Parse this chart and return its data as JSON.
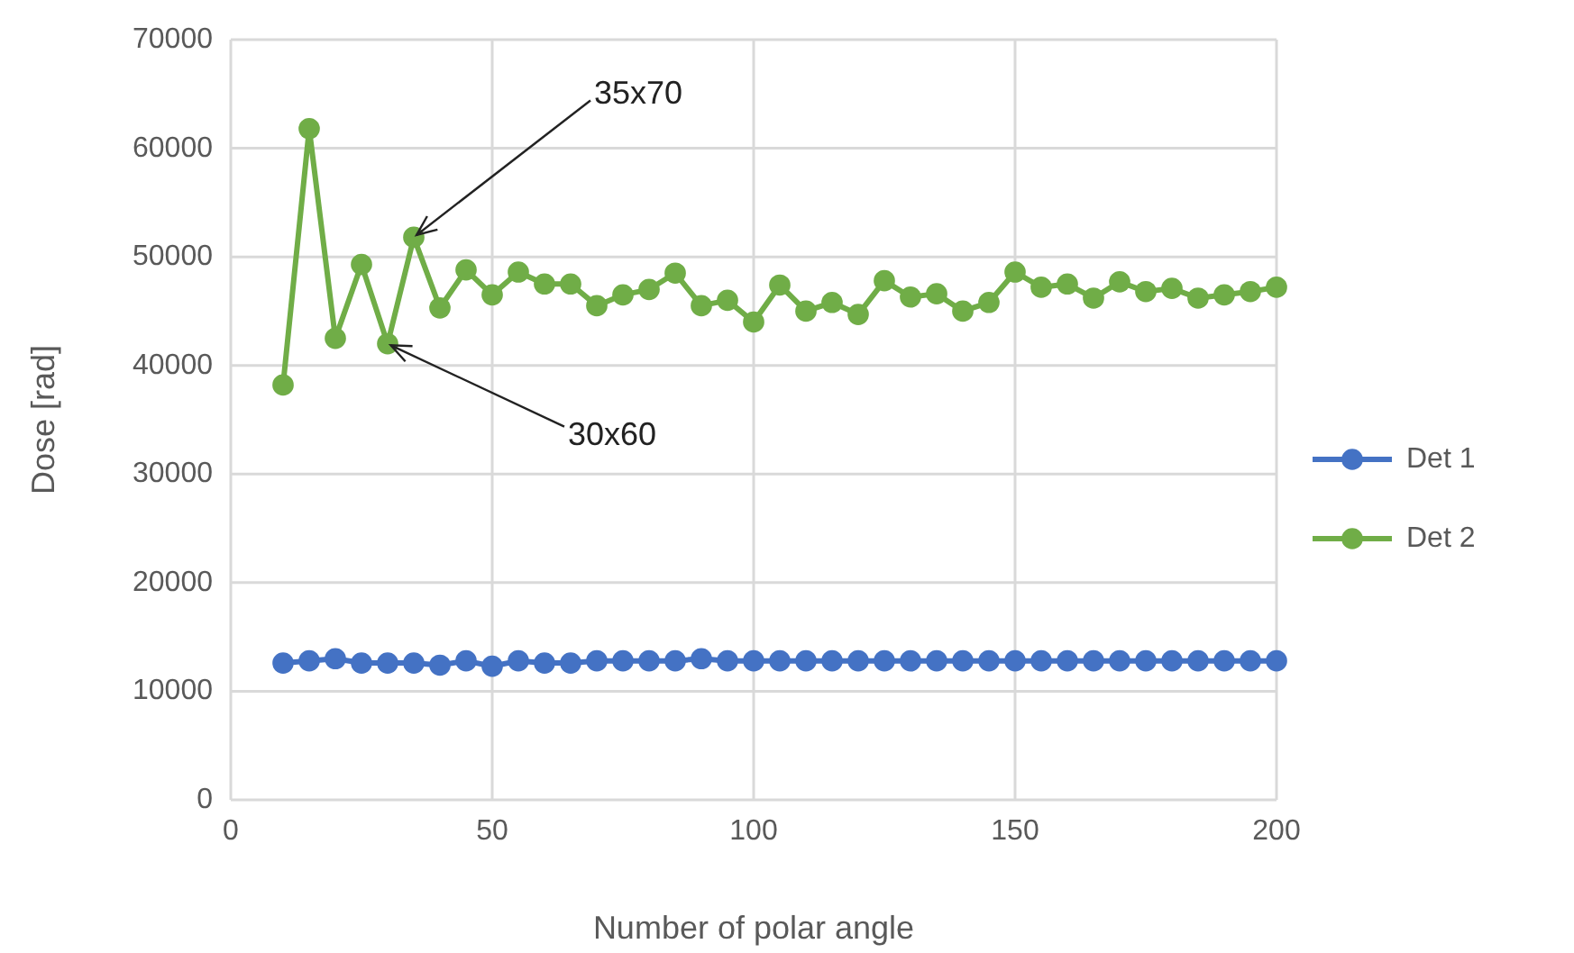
{
  "chart_data": {
    "type": "line",
    "xlabel": "Number of polar angle",
    "ylabel": "Dose [rad]",
    "x": [
      10,
      15,
      20,
      25,
      30,
      35,
      40,
      45,
      50,
      55,
      60,
      65,
      70,
      75,
      80,
      85,
      90,
      95,
      100,
      105,
      110,
      115,
      120,
      125,
      130,
      135,
      140,
      145,
      150,
      155,
      160,
      165,
      170,
      175,
      180,
      185,
      190,
      195,
      200
    ],
    "series": [
      {
        "name": "Det 1",
        "color": "#4472c4",
        "values": [
          12600,
          12800,
          13000,
          12600,
          12600,
          12600,
          12400,
          12800,
          12300,
          12800,
          12600,
          12600,
          12800,
          12800,
          12800,
          12800,
          13000,
          12800,
          12800,
          12800,
          12800,
          12800,
          12800,
          12800,
          12800,
          12800,
          12800,
          12800,
          12800,
          12800,
          12800,
          12800,
          12800,
          12800,
          12800,
          12800,
          12800,
          12800,
          12800
        ]
      },
      {
        "name": "Det 2",
        "color": "#70ad47",
        "values": [
          38200,
          61800,
          42500,
          49300,
          42000,
          51800,
          45300,
          48800,
          46500,
          48600,
          47500,
          47500,
          45500,
          46500,
          47000,
          48500,
          45500,
          46000,
          44000,
          47400,
          45000,
          45800,
          44700,
          47800,
          46300,
          46600,
          45000,
          45800,
          48600,
          47200,
          47500,
          46200,
          47700,
          46800,
          47100,
          46200,
          46500,
          46800,
          47200
        ]
      }
    ],
    "xlim": [
      0,
      200
    ],
    "xticks": [
      0,
      50,
      100,
      150,
      200
    ],
    "ylim": [
      0,
      70000
    ],
    "yticks": [
      0,
      10000,
      20000,
      30000,
      40000,
      50000,
      60000,
      70000
    ],
    "grid": true,
    "legend": "right",
    "marker": "circle",
    "line_style": "solid",
    "annotations": [
      {
        "text": "35x70",
        "x": 35,
        "y": 51800
      },
      {
        "text": "30x60",
        "x": 30,
        "y": 42000
      }
    ]
  }
}
